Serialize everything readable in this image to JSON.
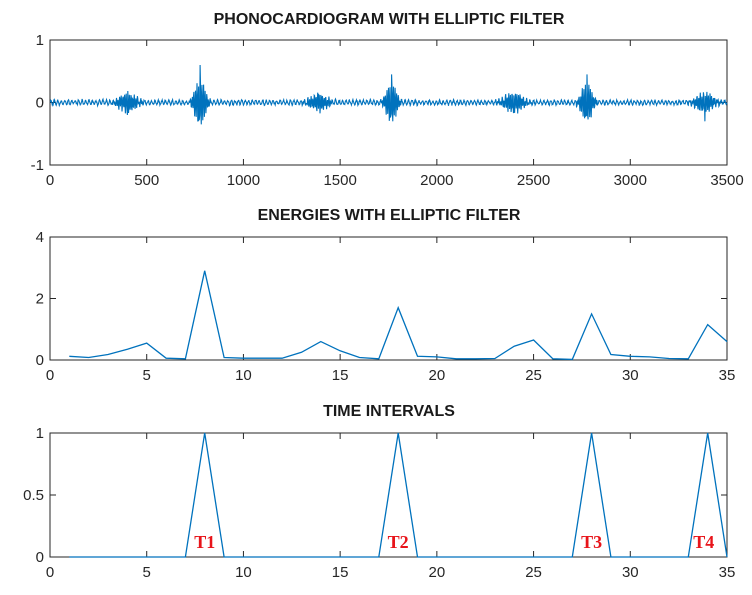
{
  "chart_data": [
    {
      "type": "line",
      "title": "PHONOCARDIOGRAM WITH ELLIPTIC FILTER",
      "xlim": [
        0,
        3500
      ],
      "ylim": [
        -1,
        1
      ],
      "xticks": [
        0,
        500,
        1000,
        1500,
        2000,
        2500,
        3000,
        3500
      ],
      "yticks": [
        -1,
        0,
        1
      ],
      "color": "#0072bd",
      "signal": {
        "baseline_noise": 0.035,
        "bursts": [
          {
            "center": 400,
            "amplitude": 0.15,
            "width": 40,
            "peak": -0.2
          },
          {
            "center": 775,
            "amplitude": 0.35,
            "width": 25,
            "peak": 0.6,
            "trough": -0.35
          },
          {
            "center": 1390,
            "amplitude": 0.13,
            "width": 40,
            "peak": 0.12
          },
          {
            "center": 1765,
            "amplitude": 0.3,
            "width": 25,
            "peak": 0.45,
            "trough": -0.3
          },
          {
            "center": 2395,
            "amplitude": 0.15,
            "width": 45,
            "peak": -0.17
          },
          {
            "center": 2775,
            "amplitude": 0.3,
            "width": 25,
            "peak": 0.45,
            "trough": -0.27
          },
          {
            "center": 3385,
            "amplitude": 0.15,
            "width": 40,
            "peak": -0.3
          }
        ]
      }
    },
    {
      "type": "line",
      "title": "ENERGIES WITH ELLIPTIC FILTER",
      "xlim": [
        0,
        35
      ],
      "ylim": [
        0,
        4
      ],
      "xticks": [
        0,
        5,
        10,
        15,
        20,
        25,
        30,
        35
      ],
      "yticks": [
        0,
        2,
        4
      ],
      "color": "#0072bd",
      "x": [
        1,
        2,
        3,
        4,
        5,
        6,
        7,
        8,
        9,
        10,
        11,
        12,
        13,
        14,
        15,
        16,
        17,
        18,
        19,
        20,
        21,
        22,
        23,
        24,
        25,
        26,
        27,
        28,
        29,
        30,
        31,
        32,
        33,
        34,
        35
      ],
      "values": [
        0.12,
        0.08,
        0.18,
        0.35,
        0.55,
        0.06,
        0.04,
        2.9,
        0.08,
        0.06,
        0.06,
        0.06,
        0.25,
        0.6,
        0.3,
        0.08,
        0.04,
        1.7,
        0.12,
        0.1,
        0.04,
        0.04,
        0.05,
        0.45,
        0.65,
        0.04,
        0.02,
        1.5,
        0.18,
        0.12,
        0.1,
        0.05,
        0.04,
        1.15,
        0.6
      ]
    },
    {
      "type": "line",
      "title": "TIME INTERVALS",
      "xlim": [
        0,
        35
      ],
      "ylim": [
        0,
        1
      ],
      "xticks": [
        0,
        5,
        10,
        15,
        20,
        25,
        30,
        35
      ],
      "yticks": [
        0,
        0.5,
        1
      ],
      "color": "#0072bd",
      "x": [
        1,
        2,
        3,
        4,
        5,
        6,
        7,
        8,
        9,
        10,
        11,
        12,
        13,
        14,
        15,
        16,
        17,
        18,
        19,
        20,
        21,
        22,
        23,
        24,
        25,
        26,
        27,
        28,
        29,
        30,
        31,
        32,
        33,
        34,
        35
      ],
      "values": [
        0,
        0,
        0,
        0,
        0,
        0,
        0,
        1,
        0,
        0,
        0,
        0,
        0,
        0,
        0,
        0,
        0,
        1,
        0,
        0,
        0,
        0,
        0,
        0,
        0,
        0,
        0,
        1,
        0,
        0,
        0,
        0,
        0,
        1,
        0
      ],
      "annotations": [
        {
          "text": "T1",
          "x": 8,
          "y": 0.12,
          "color": "#e8141a"
        },
        {
          "text": "T2",
          "x": 18,
          "y": 0.12,
          "color": "#e8141a"
        },
        {
          "text": "T3",
          "x": 28,
          "y": 0.12,
          "color": "#e8141a"
        },
        {
          "text": "T4",
          "x": 33.8,
          "y": 0.12,
          "color": "#e8141a"
        }
      ]
    }
  ]
}
